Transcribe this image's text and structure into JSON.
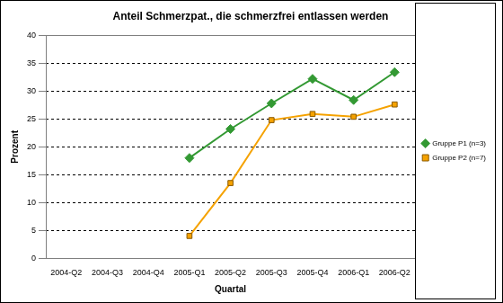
{
  "chart_data": {
    "type": "line",
    "title": "Anteil Schmerzpat., die schmerzfrei entlassen werden",
    "x_label": "Quartal",
    "y_label": "Prozent",
    "categories": [
      "2004-Q2",
      "2004-Q3",
      "2004-Q4",
      "2005-Q1",
      "2005-Q2",
      "2005-Q3",
      "2005-Q4",
      "2006-Q1",
      "2006-Q2"
    ],
    "series": [
      {
        "name": "Gruppe P1 (n=3)",
        "color": "#339933",
        "marker": "diamond",
        "values": [
          null,
          null,
          null,
          18,
          23.2,
          27.8,
          32.2,
          28.4,
          33.4
        ]
      },
      {
        "name": "Gruppe P2 (n=7)",
        "color": "#f5a200",
        "marker": "square",
        "values": [
          null,
          null,
          null,
          4,
          13.5,
          24.8,
          25.9,
          25.4,
          27.6
        ]
      }
    ],
    "ylim": [
      0,
      40
    ],
    "yticks": [
      0,
      5,
      10,
      15,
      20,
      25,
      30,
      35,
      40
    ],
    "grid": true,
    "legend": "right"
  }
}
